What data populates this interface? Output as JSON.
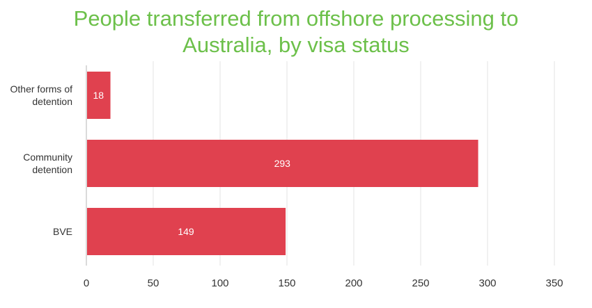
{
  "chart_data": {
    "type": "bar",
    "orientation": "horizontal",
    "title_lines": [
      "People transferred from offshore processing to",
      "Australia, by visa status"
    ],
    "categories": [
      [
        "Other forms of",
        "detention"
      ],
      [
        "Community",
        "detention"
      ],
      [
        "BVE"
      ]
    ],
    "values": [
      18,
      293,
      149
    ],
    "xlim": [
      0,
      350
    ],
    "xticks": [
      0,
      50,
      100,
      150,
      200,
      250,
      300,
      350
    ],
    "grid": "vertical",
    "legend": "none",
    "bar_color": "#e0414f",
    "title_color": "#6cc04a"
  }
}
